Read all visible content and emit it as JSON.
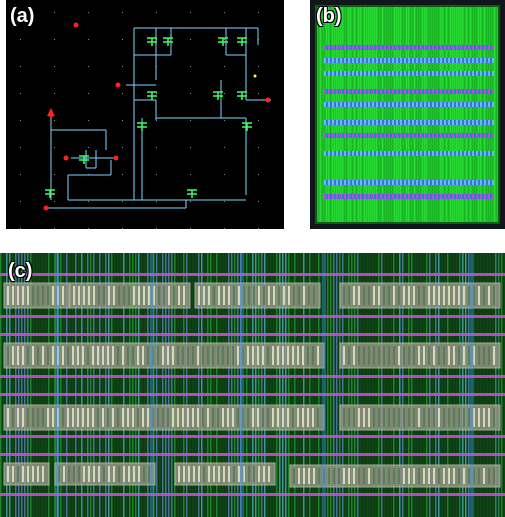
{
  "panels": {
    "a": {
      "label": "(a)"
    },
    "b": {
      "label": "(b)"
    },
    "c": {
      "label": "(c)"
    }
  },
  "colors": {
    "schematic_bg": "#000000",
    "schematic_wire": "#7fd3ff",
    "schematic_device": "#3fff6a",
    "schematic_pin": "#ff2020",
    "layout_bg": "#0b3b12",
    "metal_green": "#2ecc40",
    "metal_magenta": "#d14fd8",
    "metal_blue": "#4a5cff",
    "metal_cyan": "#6ce0ff",
    "cell_grey": "#9a9a8a"
  }
}
